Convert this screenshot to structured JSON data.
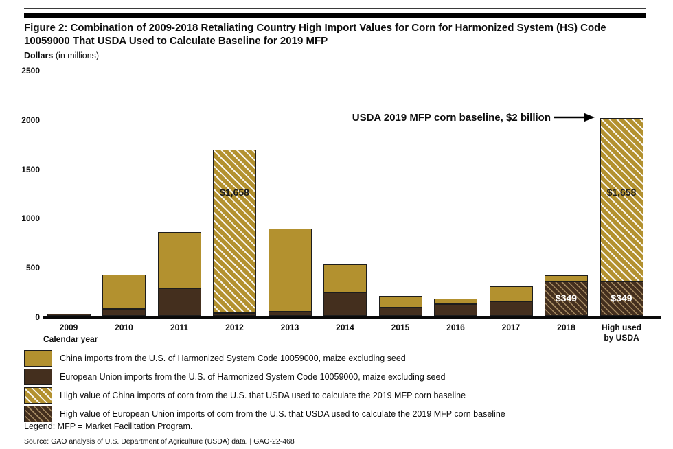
{
  "figure": {
    "title": "Figure 2: Combination of 2009-2018 Retaliating Country High Import Values for Corn for Harmonized System (HS) Code 10059000 That USDA Used to Calculate Baseline for 2019 MFP",
    "units_label": "Dollars",
    "units_sub": "(in millions)",
    "xlabel": "Calendar year",
    "annotation": "USDA 2019 MFP corn baseline, $2 billion",
    "legend_note": "Legend: MFP = Market Facilitation Program.",
    "source": "Source: GAO analysis of U.S. Department of Agriculture (USDA) data.  |  GAO-22-468"
  },
  "colors": {
    "china_gold": "#B3912F",
    "eu_brown": "#442F1E",
    "gold_hatch_stripe": "#FFFFFF",
    "brown_hatch_stripe": "#D9BA86",
    "axis_black": "#0A0A0A"
  },
  "chart_data": {
    "type": "bar",
    "stacked": true,
    "title": "Figure 2: Combination of 2009-2018 Retaliating Country High Import Values for Corn for Harmonized System (HS) Code 10059000 That USDA Used to Calculate Baseline for 2019 MFP",
    "ylabel": "Dollars (in millions)",
    "xlabel": "Calendar year",
    "ylim": [
      0,
      2500
    ],
    "yticks": [
      0,
      500,
      1000,
      1500,
      2000,
      2500
    ],
    "grid": false,
    "legend_position": "bottom",
    "categories": [
      "2009",
      "2010",
      "2011",
      "2012",
      "2013",
      "2014",
      "2015",
      "2016",
      "2017",
      "2018",
      "High used\nby USDA"
    ],
    "bars": [
      {
        "category": "2009",
        "segments": [
          {
            "type": "eu",
            "value": 20
          }
        ]
      },
      {
        "category": "2010",
        "segments": [
          {
            "type": "eu",
            "value": 70
          },
          {
            "type": "cn",
            "value": 350
          }
        ]
      },
      {
        "category": "2011",
        "segments": [
          {
            "type": "eu",
            "value": 280
          },
          {
            "type": "cn",
            "value": 570
          }
        ]
      },
      {
        "category": "2012",
        "segments": [
          {
            "type": "eu",
            "value": 30
          },
          {
            "type": "cn_high",
            "value": 1658,
            "label": "$1,658"
          }
        ]
      },
      {
        "category": "2013",
        "segments": [
          {
            "type": "eu",
            "value": 40
          },
          {
            "type": "cn",
            "value": 845
          }
        ]
      },
      {
        "category": "2014",
        "segments": [
          {
            "type": "eu",
            "value": 235
          },
          {
            "type": "cn",
            "value": 290
          }
        ]
      },
      {
        "category": "2015",
        "segments": [
          {
            "type": "eu",
            "value": 85
          },
          {
            "type": "cn",
            "value": 120
          }
        ]
      },
      {
        "category": "2016",
        "segments": [
          {
            "type": "eu",
            "value": 120
          },
          {
            "type": "cn",
            "value": 55
          }
        ]
      },
      {
        "category": "2017",
        "segments": [
          {
            "type": "eu",
            "value": 145
          },
          {
            "type": "cn",
            "value": 155
          }
        ]
      },
      {
        "category": "2018",
        "segments": [
          {
            "type": "eu_high",
            "value": 349,
            "label": "$349"
          },
          {
            "type": "cn",
            "value": 60
          }
        ]
      },
      {
        "category": "High used\nby USDA",
        "segments": [
          {
            "type": "eu_high",
            "value": 349,
            "label": "$349"
          },
          {
            "type": "cn_high",
            "value": 1658,
            "label": "$1,658"
          }
        ]
      }
    ],
    "annotations": [
      {
        "text": "USDA 2019 MFP corn baseline, $2 billion",
        "points_to": "High used by USDA bar top",
        "value": 2007
      }
    ],
    "legend": [
      {
        "type": "cn",
        "label": "China imports from the U.S. of Harmonized System Code 10059000, maize excluding seed"
      },
      {
        "type": "eu",
        "label": "European Union imports from the U.S. of Harmonized System Code 10059000, maize excluding seed"
      },
      {
        "type": "cn_high",
        "label": "High value of China imports of corn from the U.S. that USDA used to calculate the 2019 MFP corn baseline"
      },
      {
        "type": "eu_high",
        "label": "High value of European Union imports of corn from the U.S. that USDA used to calculate the 2019 MFP corn baseline"
      }
    ]
  }
}
